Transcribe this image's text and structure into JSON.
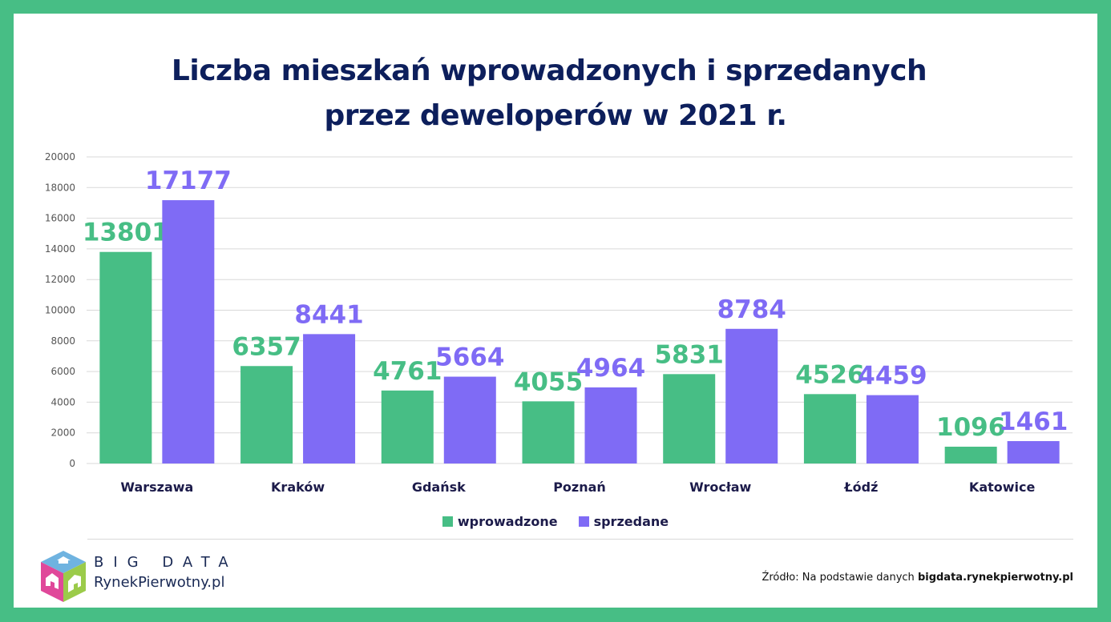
{
  "brand": {
    "frame_color": "#47BE85",
    "green": "#47BE85",
    "purple": "#7F6BF5",
    "navy": "#0D1F5C"
  },
  "title": {
    "line1": "Liczba mieszkań wprowadzonych i sprzedanych",
    "line2": "przez deweloperów w 2021 r."
  },
  "footer": {
    "logo_line1": "BIG DATA",
    "logo_line2": "RynekPierwotny.pl",
    "source_prefix": "Źródło: Na podstawie danych ",
    "source_link": "bigdata.rynekpierwotny.pl"
  },
  "chart_data": {
    "type": "bar",
    "title": "Liczba mieszkań wprowadzonych i sprzedanych przez deweloperów w 2021 r.",
    "xlabel": "",
    "ylabel": "",
    "ylim": [
      0,
      20000
    ],
    "yticks": [
      0,
      2000,
      4000,
      6000,
      8000,
      10000,
      12000,
      14000,
      16000,
      18000,
      20000
    ],
    "grid": true,
    "legend_position": "bottom",
    "categories": [
      "Warszawa",
      "Kraków",
      "Gdańsk",
      "Poznań",
      "Wrocław",
      "Łódź",
      "Katowice"
    ],
    "series": [
      {
        "name": "wprowadzone",
        "color": "#47BE85",
        "values": [
          13801,
          6357,
          4761,
          4055,
          5831,
          4526,
          1096
        ]
      },
      {
        "name": "sprzedane",
        "color": "#7F6BF5",
        "values": [
          17177,
          8441,
          5664,
          4964,
          8784,
          4459,
          1461
        ]
      }
    ]
  }
}
